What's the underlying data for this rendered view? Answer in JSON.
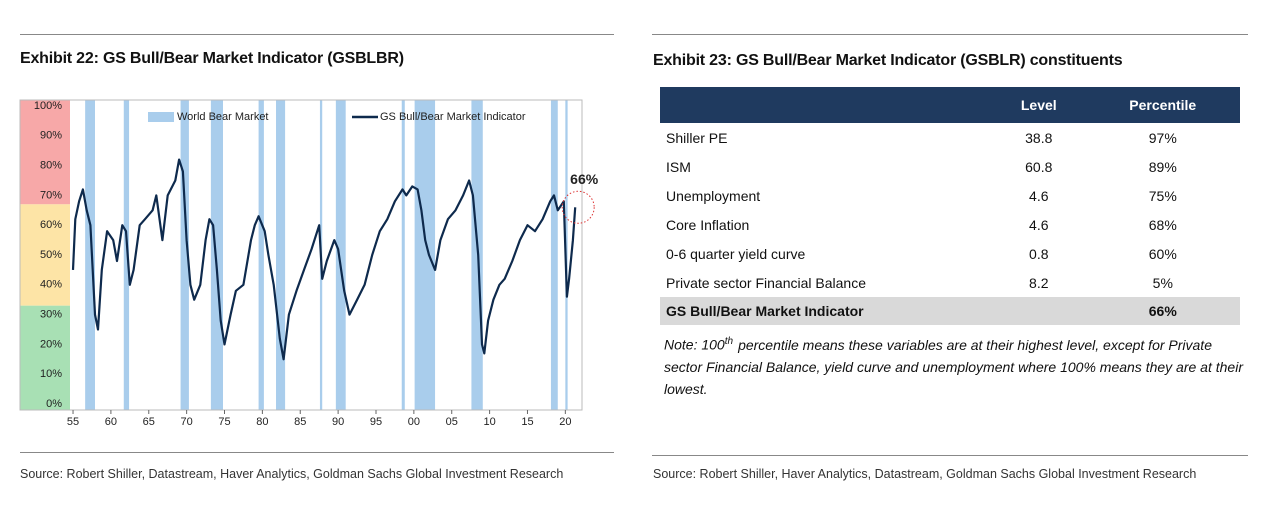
{
  "left": {
    "title": "Exhibit 22: GS Bull/Bear Market Indicator (GSBLBR)",
    "source": "Source: Robert Shiller, Datastream, Haver Analytics, Goldman Sachs Global Investment Research"
  },
  "chart_data": {
    "type": "line",
    "x": [
      1955.0,
      1955.3,
      1955.8,
      1956.3,
      1956.8,
      1957.3,
      1957.9,
      1958.3,
      1958.8,
      1959.5,
      1960.3,
      1960.8,
      1961.5,
      1962.0,
      1962.5,
      1963.0,
      1963.8,
      1964.5,
      1965.5,
      1966.0,
      1966.8,
      1967.5,
      1968.5,
      1969.0,
      1969.5,
      1970.0,
      1970.5,
      1971.0,
      1971.8,
      1972.5,
      1973.0,
      1973.5,
      1974.0,
      1974.5,
      1975.0,
      1975.8,
      1976.5,
      1977.5,
      1978.5,
      1979.0,
      1979.5,
      1980.3,
      1980.8,
      1981.5,
      1982.3,
      1982.8,
      1983.5,
      1984.5,
      1985.5,
      1986.5,
      1987.5,
      1987.9,
      1988.5,
      1989.5,
      1990.0,
      1990.8,
      1991.5,
      1992.5,
      1993.5,
      1994.5,
      1995.5,
      1996.5,
      1997.5,
      1998.5,
      1999.0,
      1999.8,
      2000.5,
      2001.0,
      2001.5,
      2002.0,
      2002.8,
      2003.5,
      2004.5,
      2005.5,
      2006.5,
      2007.3,
      2007.8,
      2008.5,
      2009.0,
      2009.3,
      2009.8,
      2010.5,
      2011.3,
      2012.0,
      2013.0,
      2014.0,
      2015.0,
      2016.0,
      2017.0,
      2018.0,
      2018.5,
      2019.0,
      2019.8,
      2020.2,
      2020.5,
      2021.0,
      2021.3
    ],
    "series": [
      {
        "name": "GS Bull/Bear Market Indicator",
        "color": "#0e2a4d",
        "values": [
          45,
          62,
          68,
          72,
          65,
          60,
          30,
          25,
          45,
          58,
          55,
          48,
          60,
          58,
          40,
          45,
          60,
          62,
          65,
          70,
          55,
          70,
          75,
          82,
          78,
          55,
          40,
          35,
          40,
          55,
          62,
          60,
          45,
          28,
          20,
          30,
          38,
          40,
          55,
          60,
          63,
          58,
          50,
          40,
          22,
          15,
          30,
          38,
          45,
          52,
          60,
          42,
          48,
          55,
          52,
          38,
          30,
          35,
          40,
          50,
          58,
          62,
          68,
          72,
          70,
          73,
          72,
          65,
          55,
          50,
          45,
          55,
          62,
          65,
          70,
          75,
          70,
          50,
          20,
          17,
          28,
          35,
          40,
          42,
          48,
          55,
          60,
          58,
          62,
          68,
          70,
          65,
          68,
          36,
          42,
          55,
          66
        ]
      }
    ],
    "bear_markets": {
      "name": "World Bear Market",
      "color": "#a9cdec",
      "spans": [
        [
          1956.6,
          1957.9
        ],
        [
          1961.7,
          1962.4
        ],
        [
          1969.2,
          1970.3
        ],
        [
          1973.2,
          1974.8
        ],
        [
          1979.5,
          1980.2
        ],
        [
          1981.8,
          1983.0
        ],
        [
          1987.6,
          1987.9
        ],
        [
          1989.7,
          1991.0
        ],
        [
          1998.4,
          1998.8
        ],
        [
          2000.1,
          2002.8
        ],
        [
          2007.6,
          2009.1
        ],
        [
          2018.1,
          2019.0
        ],
        [
          2020.0,
          2020.3
        ]
      ]
    },
    "zones": [
      {
        "from": 67,
        "to": 102,
        "color": "#f7a8a8"
      },
      {
        "from": 33,
        "to": 67,
        "color": "#fde4a6"
      },
      {
        "from": -2,
        "to": 33,
        "color": "#a8e0b4"
      }
    ],
    "annotation": "66%",
    "xlim": [
      1954.6,
      2022.2
    ],
    "xticks": [
      {
        "value": 1955,
        "label": "55"
      },
      {
        "value": 1960,
        "label": "60"
      },
      {
        "value": 1965,
        "label": "65"
      },
      {
        "value": 1970,
        "label": "70"
      },
      {
        "value": 1975,
        "label": "75"
      },
      {
        "value": 1980,
        "label": "80"
      },
      {
        "value": 1985,
        "label": "85"
      },
      {
        "value": 1990,
        "label": "90"
      },
      {
        "value": 1995,
        "label": "95"
      },
      {
        "value": 2000,
        "label": "00"
      },
      {
        "value": 2005,
        "label": "05"
      },
      {
        "value": 2010,
        "label": "10"
      },
      {
        "value": 2015,
        "label": "15"
      },
      {
        "value": 2020,
        "label": "20"
      }
    ],
    "ylim": [
      -2,
      102
    ],
    "yticks": [
      {
        "value": 0,
        "label": "0%"
      },
      {
        "value": 10,
        "label": "10%"
      },
      {
        "value": 20,
        "label": "20%"
      },
      {
        "value": 30,
        "label": "30%"
      },
      {
        "value": 40,
        "label": "40%"
      },
      {
        "value": 50,
        "label": "50%"
      },
      {
        "value": 60,
        "label": "60%"
      },
      {
        "value": 70,
        "label": "70%"
      },
      {
        "value": 80,
        "label": "80%"
      },
      {
        "value": 90,
        "label": "90%"
      },
      {
        "value": 100,
        "label": "100%"
      }
    ]
  },
  "right": {
    "title": "Exhibit 23: GS Bull/Bear Market Indicator (GSBLR) constituents",
    "table": {
      "columns": [
        "Level",
        "Percentile"
      ],
      "rows": [
        [
          "Shiller PE",
          "38.8",
          "97%"
        ],
        [
          "ISM",
          "60.8",
          "89%"
        ],
        [
          "Unemployment",
          "4.6",
          "75%"
        ],
        [
          "Core Inflation",
          "4.6",
          "68%"
        ],
        [
          "0-6 quarter yield curve",
          "0.8",
          "60%"
        ],
        [
          "Private sector Financial Balance",
          "8.2",
          "5%"
        ]
      ],
      "total": {
        "label": "GS Bull/Bear Market Indicator",
        "percentile": "66%"
      }
    },
    "note": {
      "prefix": "Note: 100",
      "sup": "th",
      "text": "percentile means these variables are at their highest level, except for Private sector Financial Balance, yield curve and unemployment where 100% means they are at their lowest."
    },
    "source": "Source: Robert Shiller, Haver Analytics, Datastream, Goldman Sachs Global Investment Research"
  }
}
